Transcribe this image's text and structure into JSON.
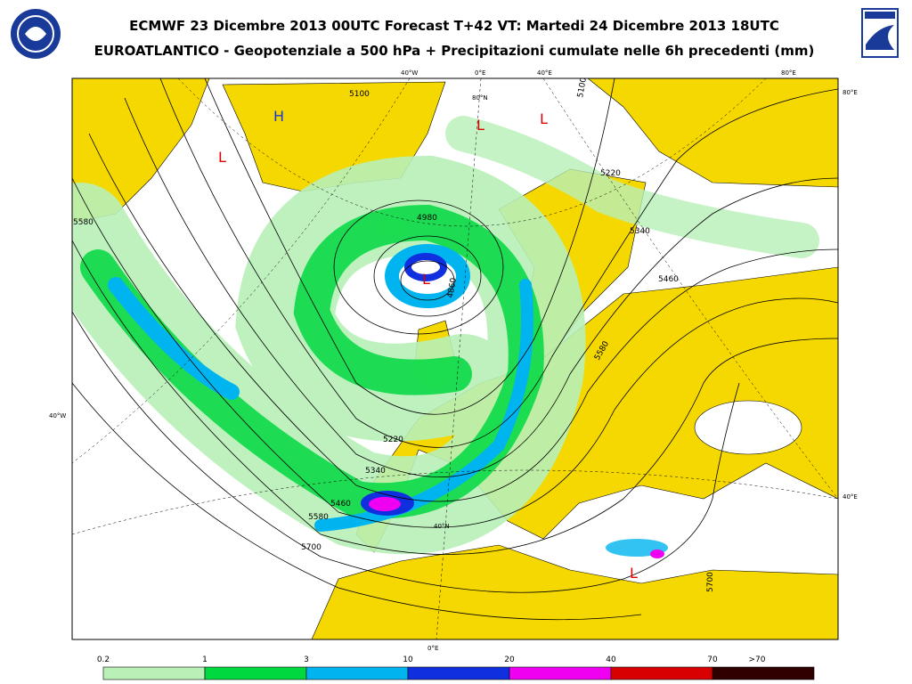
{
  "header": {
    "title": "ECMWF 23 Dicembre 2013 00UTC Forecast T+42 VT: Martedi 24 Dicembre 2013 18UTC",
    "subtitle": "EUROATLANTICO - Geopotenziale a 500 hPa + Precipitazioni cumulate nelle 6h precedenti (mm)"
  },
  "map": {
    "contour_labels": [
      "5100",
      "4980",
      "5220",
      "5340",
      "5460",
      "5580",
      "5220",
      "5340",
      "5460",
      "5580",
      "5700",
      "5700",
      "5100",
      "4860",
      "5580"
    ],
    "pressure_centers": [
      "H",
      "L",
      "L",
      "L",
      "L",
      "L"
    ],
    "graticule_labels": [
      "40°W",
      "0°E",
      "40°E",
      "80°E",
      "80°E",
      "40°W",
      "40°E",
      "0°E",
      "80°N",
      "40°N"
    ]
  },
  "colorbar": {
    "labels": [
      "0.2",
      "1",
      "3",
      "10",
      "20",
      "40",
      "70",
      ">70"
    ],
    "colors": [
      "#b8f0b8",
      "#00d840",
      "#00b4f0",
      "#1030e0",
      "#f000f0",
      "#d80000",
      "#300000"
    ]
  }
}
